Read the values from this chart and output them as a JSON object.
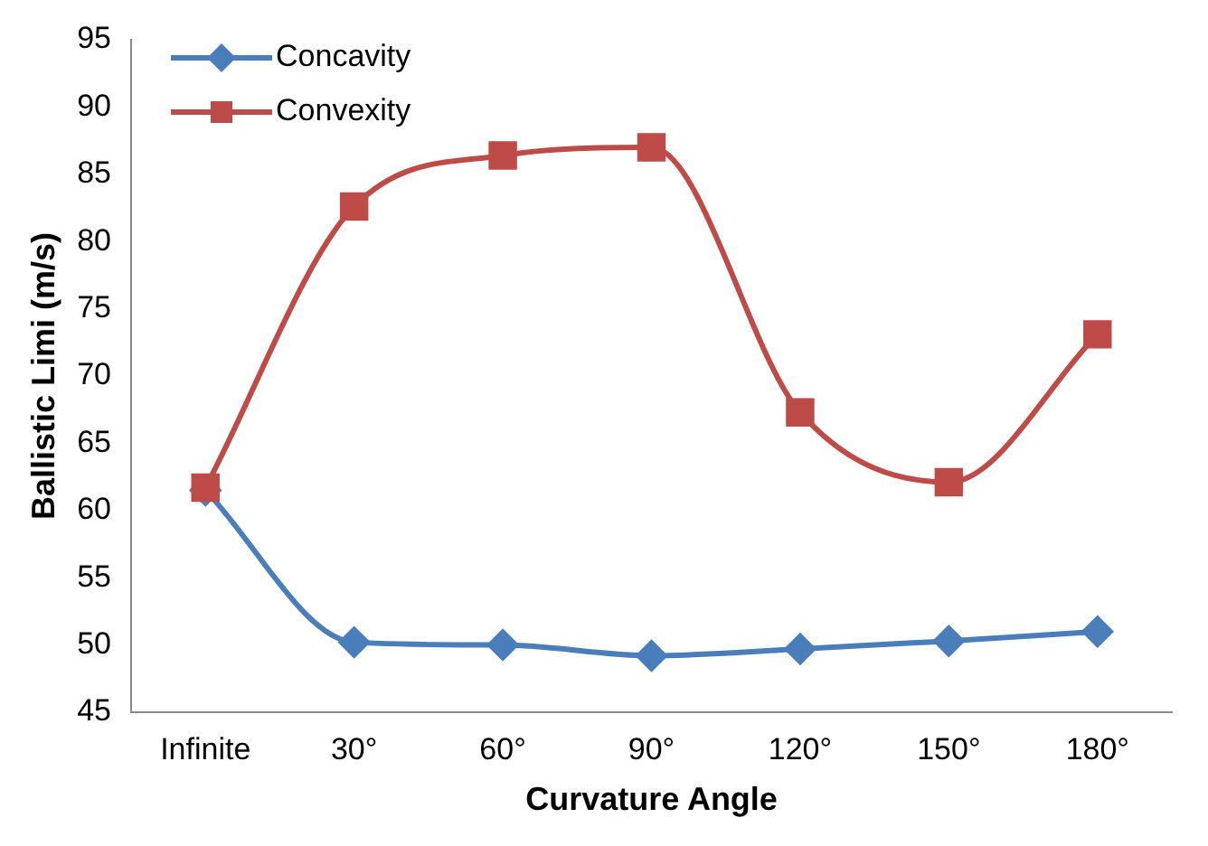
{
  "chart_data": {
    "type": "line",
    "xlabel": "Curvature Angle",
    "ylabel": "Ballistic Limi (m/s)",
    "categories": [
      "Infinite",
      "30°",
      "60°",
      "90°",
      "120°",
      "150°",
      "180°"
    ],
    "series": [
      {
        "name": "Concavity",
        "color": "#4a7ebb",
        "marker": "diamond",
        "values": [
          61.5,
          50.2,
          50,
          49.2,
          49.7,
          50.3,
          51
        ]
      },
      {
        "name": "Convexity",
        "color": "#be4b48",
        "marker": "square",
        "values": [
          61.7,
          82.6,
          86.4,
          87,
          67.3,
          62.1,
          73.1
        ]
      }
    ],
    "ylim": [
      45,
      95
    ],
    "yticks": [
      45,
      50,
      55,
      60,
      65,
      70,
      75,
      80,
      85,
      90,
      95
    ],
    "grid": false,
    "legend": "top left"
  }
}
